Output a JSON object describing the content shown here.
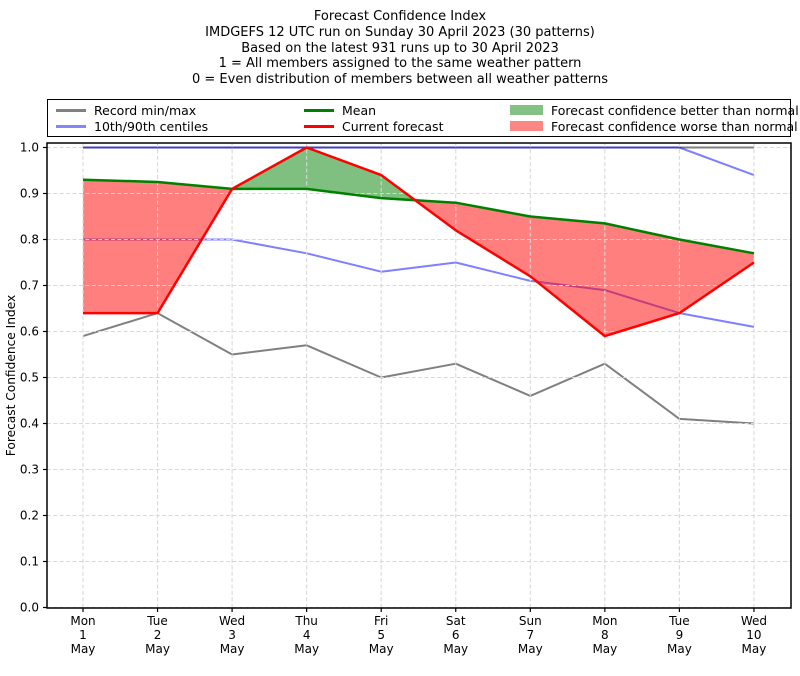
{
  "header": {
    "title_lines": [
      "Forecast Confidence Index",
      "IMDGEFS 12 UTC run on Sunday 30 April 2023 (30 patterns)",
      "Based on the latest 931 runs up to 30 April 2023",
      "1 = All members assigned to the same weather pattern",
      "0 = Even distribution of members between all weather patterns"
    ]
  },
  "legend": {
    "items": [
      {
        "label": "Record min/max",
        "type": "line",
        "color": "#808080"
      },
      {
        "label": "10th/90th centiles",
        "type": "line",
        "color": "#8585fa"
      },
      {
        "label": "Mean",
        "type": "line",
        "color": "#008000"
      },
      {
        "label": "Current forecast",
        "type": "line",
        "color": "#ff0000"
      },
      {
        "label": "Forecast confidence better than normal",
        "type": "patch",
        "color": "#85c085"
      },
      {
        "label": "Forecast confidence worse than normal",
        "type": "patch",
        "color": "#fa8686"
      }
    ]
  },
  "chart_data": {
    "type": "line",
    "title": "Forecast Confidence Index",
    "ylabel": "Forecast Confidence Index",
    "ylim": [
      0.0,
      1.0
    ],
    "ytick_step": 0.1,
    "grid": true,
    "legend_position": "top",
    "yticks": [
      "0.0",
      "0.1",
      "0.2",
      "0.3",
      "0.4",
      "0.5",
      "0.6",
      "0.7",
      "0.8",
      "0.9",
      "1.0"
    ],
    "categories": [
      {
        "dow": "Mon",
        "day": "1",
        "month": "May"
      },
      {
        "dow": "Tue",
        "day": "2",
        "month": "May"
      },
      {
        "dow": "Wed",
        "day": "3",
        "month": "May"
      },
      {
        "dow": "Thu",
        "day": "4",
        "month": "May"
      },
      {
        "dow": "Fri",
        "day": "5",
        "month": "May"
      },
      {
        "dow": "Sat",
        "day": "6",
        "month": "May"
      },
      {
        "dow": "Sun",
        "day": "7",
        "month": "May"
      },
      {
        "dow": "Mon",
        "day": "8",
        "month": "May"
      },
      {
        "dow": "Tue",
        "day": "9",
        "month": "May"
      },
      {
        "dow": "Wed",
        "day": "10",
        "month": "May"
      }
    ],
    "series": [
      {
        "name": "Record max",
        "color": "#808080",
        "opacity": 1,
        "width": 2,
        "values": [
          1.0,
          1.0,
          1.0,
          1.0,
          1.0,
          1.0,
          1.0,
          1.0,
          1.0,
          1.0
        ]
      },
      {
        "name": "90th centile",
        "color": "#0000ff",
        "opacity": 0.5,
        "width": 2,
        "values": [
          1.0,
          1.0,
          1.0,
          1.0,
          1.0,
          1.0,
          1.0,
          1.0,
          1.0,
          0.94
        ]
      },
      {
        "name": "10th centile",
        "color": "#0000ff",
        "opacity": 0.5,
        "width": 2,
        "values": [
          0.8,
          0.8,
          0.8,
          0.77,
          0.73,
          0.75,
          0.71,
          0.69,
          0.64,
          0.61
        ]
      },
      {
        "name": "Record min",
        "color": "#808080",
        "opacity": 1,
        "width": 2,
        "values": [
          0.59,
          0.64,
          0.55,
          0.57,
          0.5,
          0.53,
          0.46,
          0.53,
          0.41,
          0.4
        ]
      },
      {
        "name": "Mean",
        "color": "#008000",
        "opacity": 1,
        "width": 2.5,
        "values": [
          0.93,
          0.925,
          0.91,
          0.91,
          0.89,
          0.88,
          0.85,
          0.835,
          0.8,
          0.77
        ]
      },
      {
        "name": "Current forecast",
        "color": "#ff0000",
        "opacity": 1,
        "width": 2.5,
        "values": [
          0.64,
          0.64,
          0.91,
          1.0,
          0.94,
          0.82,
          0.72,
          0.59,
          0.64,
          0.75
        ]
      }
    ],
    "fills": {
      "better": {
        "label": "Forecast confidence better than normal",
        "between": [
          "Current forecast",
          "Mean"
        ],
        "where": "current > mean",
        "color": "#008000",
        "opacity": 0.5
      },
      "worse": {
        "label": "Forecast confidence worse than normal",
        "between": [
          "Current forecast",
          "Mean"
        ],
        "where": "current < mean",
        "color": "#ff0000",
        "opacity": 0.5
      }
    },
    "grid_color": "#d8d8d8"
  }
}
